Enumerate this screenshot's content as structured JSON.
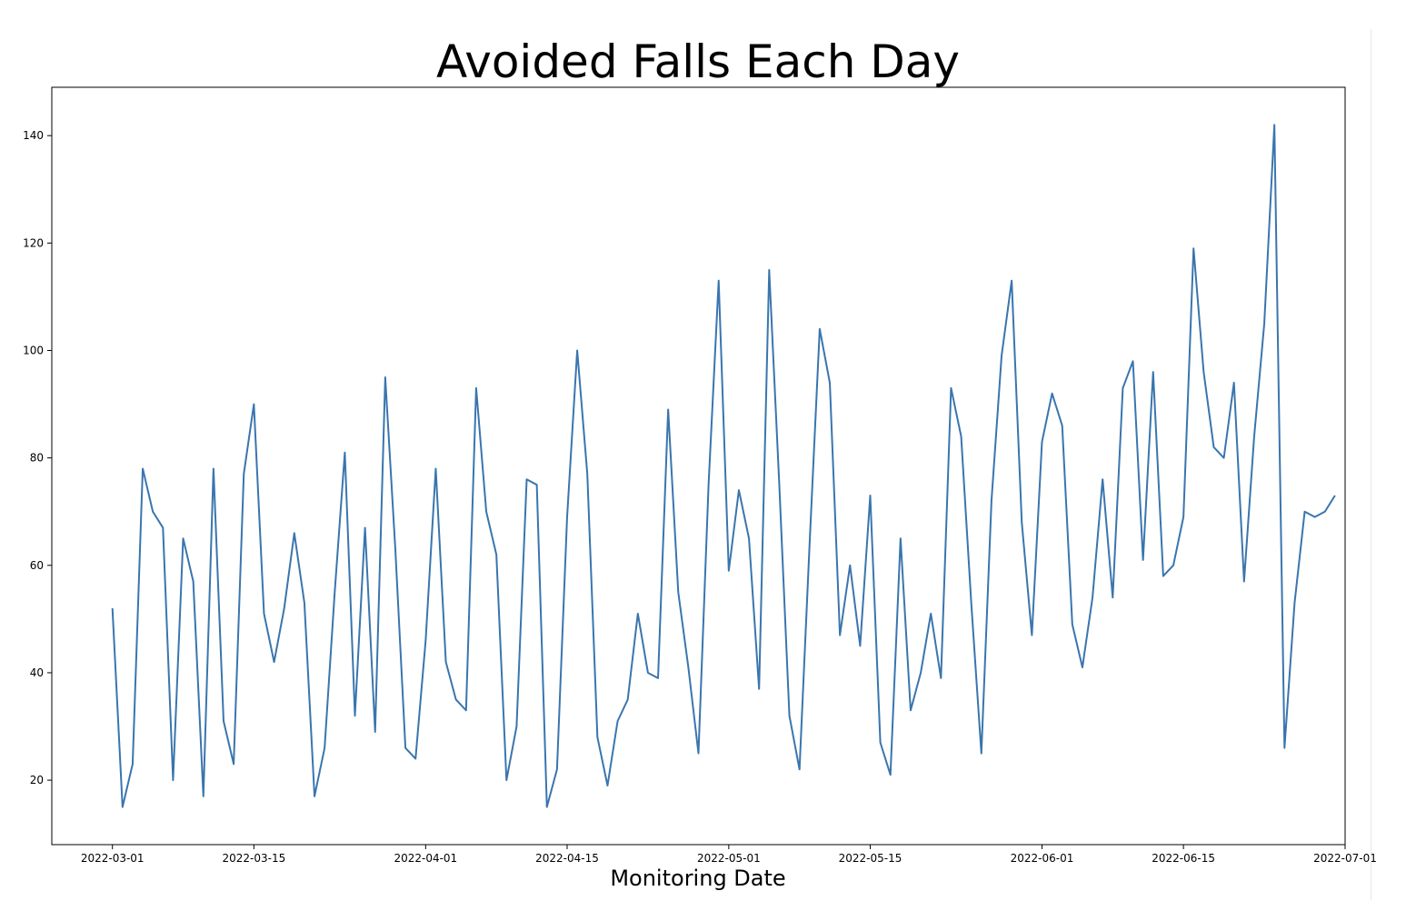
{
  "chart_data": {
    "type": "line",
    "title": "Avoided Falls Each Day",
    "xlabel": "Monitoring Date",
    "ylabel": "",
    "x_start": "2022-03-01",
    "x_step_days": 1,
    "xlim_days": [
      -6,
      122
    ],
    "ylim": [
      8,
      149
    ],
    "grid": false,
    "color": "#3a75ae",
    "xticks": [
      {
        "day": 0,
        "label": "2022-03-01"
      },
      {
        "day": 14,
        "label": "2022-03-15"
      },
      {
        "day": 31,
        "label": "2022-04-01"
      },
      {
        "day": 45,
        "label": "2022-04-15"
      },
      {
        "day": 61,
        "label": "2022-05-01"
      },
      {
        "day": 75,
        "label": "2022-05-15"
      },
      {
        "day": 92,
        "label": "2022-06-01"
      },
      {
        "day": 106,
        "label": "2022-06-15"
      },
      {
        "day": 122,
        "label": "2022-07-01"
      }
    ],
    "yticks": [
      20,
      40,
      60,
      80,
      100,
      120,
      140
    ],
    "values": [
      52,
      15,
      23,
      78,
      70,
      67,
      20,
      65,
      57,
      17,
      78,
      31,
      23,
      77,
      90,
      51,
      42,
      52,
      66,
      53,
      17,
      26,
      55,
      81,
      32,
      67,
      29,
      95,
      63,
      26,
      24,
      46,
      78,
      42,
      35,
      33,
      93,
      70,
      62,
      20,
      30,
      76,
      75,
      15,
      22,
      69,
      100,
      77,
      28,
      19,
      31,
      35,
      51,
      40,
      39,
      89,
      55,
      41,
      25,
      75,
      113,
      59,
      74,
      65,
      37,
      115,
      75,
      32,
      22,
      64,
      104,
      94,
      47,
      60,
      45,
      73,
      27,
      21,
      65,
      33,
      40,
      51,
      39,
      93,
      84,
      53,
      25,
      72,
      99,
      113,
      68,
      47,
      83,
      92,
      86,
      49,
      41,
      54,
      76,
      54,
      93,
      98,
      61,
      96,
      58,
      60,
      69,
      119,
      96,
      82,
      80,
      94,
      57,
      84,
      105,
      142,
      26,
      53,
      70,
      69,
      70,
      73
    ]
  }
}
